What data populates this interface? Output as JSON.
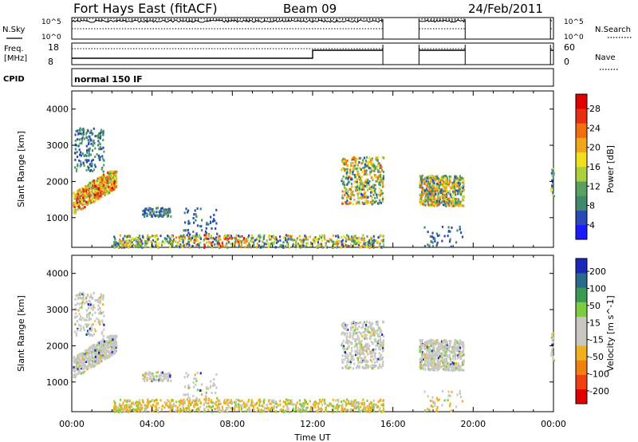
{
  "header": {
    "title": "Fort Hays East (fitACF)",
    "beam": "Beam 09",
    "date": "24/Feb/2011"
  },
  "strips": {
    "nsky_label": "N.Sky",
    "nsky_ticks": [
      "10^5",
      "10^0"
    ],
    "nsearch_label": "N.Search",
    "nsearch_ticks": [
      "10^5",
      "10^0"
    ],
    "freq_label": "Freq.",
    "freq_unit": "[MHz]",
    "freq_ticks": [
      "18",
      "8"
    ],
    "nave_label": "Nave",
    "nave_ticks": [
      "60",
      "0"
    ],
    "cpid_label": "CPID",
    "cpid_value": "normal 150 IF"
  },
  "colors": {
    "power": [
      "#1a1aff",
      "#2a4ab8",
      "#3f8a6a",
      "#5aa060",
      "#a8d040",
      "#f0e020",
      "#f0a818",
      "#f07010",
      "#e83010",
      "#e00000"
    ],
    "velocity": [
      "#1a2ab8",
      "#2a6a8a",
      "#3a9a50",
      "#80cc40",
      "#c8c8c0",
      "#c8c8c0",
      "#f0b020",
      "#f08010",
      "#f04010",
      "#e00000"
    ]
  },
  "chart_data": [
    {
      "type": "heatmap",
      "name": "power",
      "ylabel": "Slant Range [km]",
      "yticks": [
        "4000",
        "3000",
        "2000",
        "1000"
      ],
      "ylim": [
        180,
        4500
      ],
      "xlim_hours": [
        0,
        24
      ],
      "colorbar_label": "Power [dB]",
      "colorbar_ticks": [
        "28",
        "24",
        "20",
        "16",
        "12",
        "8",
        "4"
      ],
      "colorbar_range": [
        0,
        30
      ]
    },
    {
      "type": "heatmap",
      "name": "velocity",
      "ylabel": "Slant Range [km]",
      "yticks": [
        "4000",
        "3000",
        "2000",
        "1000"
      ],
      "ylim": [
        180,
        4500
      ],
      "xlim_hours": [
        0,
        24
      ],
      "colorbar_label": "Velocity [m s^-1]",
      "colorbar_ticks": [
        "200",
        "100",
        "50",
        "15",
        "-15",
        "-50",
        "-100",
        "-200"
      ],
      "xlabel": "Time UT",
      "xticks": [
        "00:00",
        "04:00",
        "08:00",
        "12:00",
        "16:00",
        "20:00",
        "00:00"
      ]
    }
  ]
}
